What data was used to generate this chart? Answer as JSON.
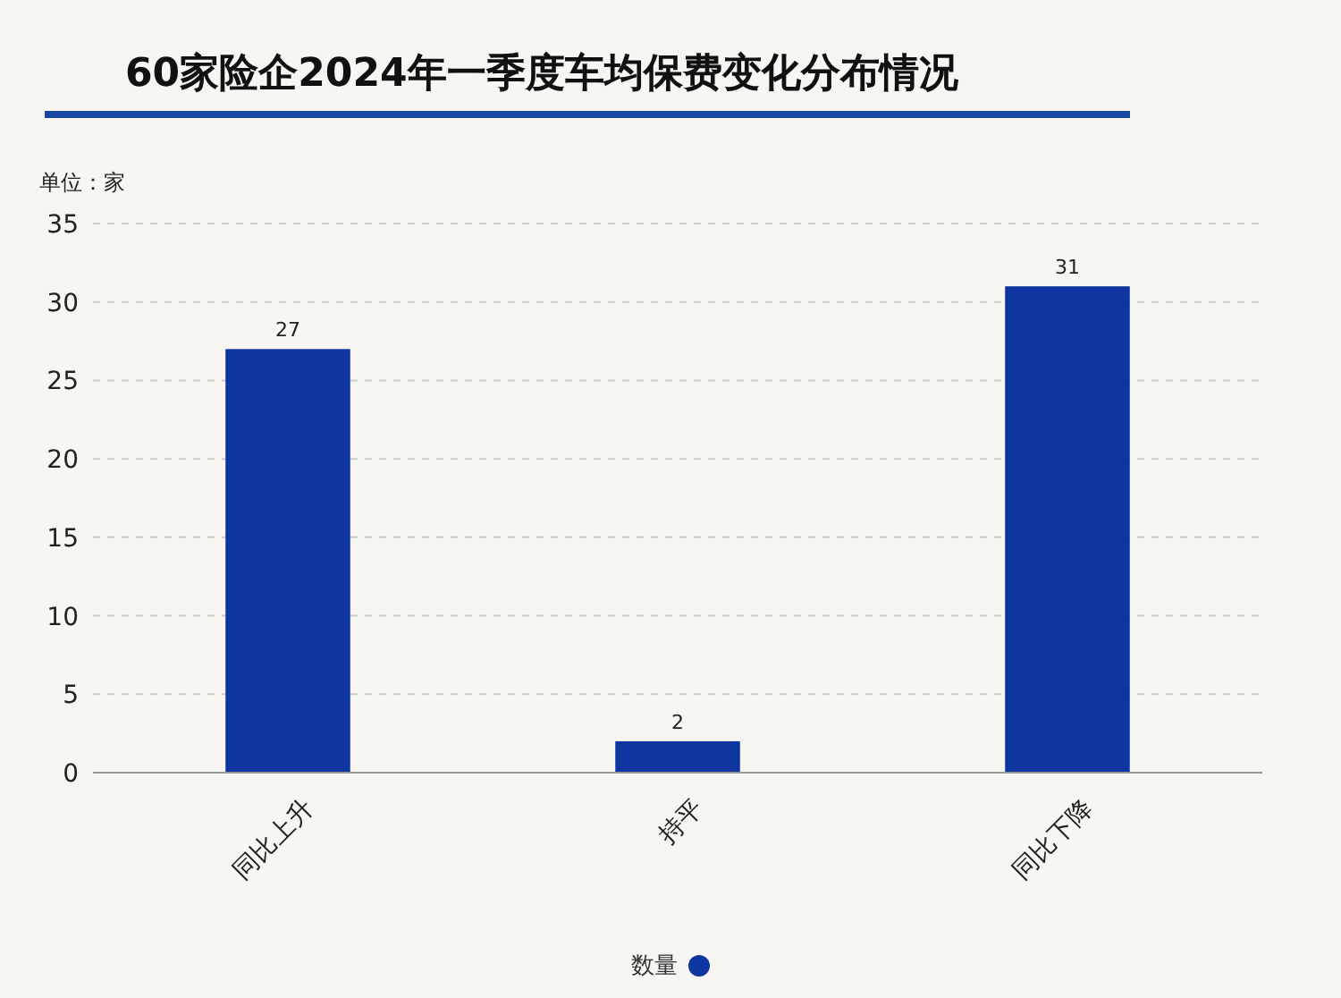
{
  "chart_data": {
    "type": "bar",
    "title": "60家险企2024年一季度车均保费变化分布情况",
    "ylabel": "单位：家",
    "categories": [
      "同比上升",
      "持平",
      "同比下降"
    ],
    "series": [
      {
        "name": "数量",
        "color": "#0f35a0",
        "values": [
          27,
          2,
          31
        ]
      }
    ],
    "ylim": [
      0,
      35
    ],
    "yticks": [
      0,
      5,
      10,
      15,
      20,
      25,
      30,
      35
    ],
    "grid": "y",
    "data_labels": true,
    "legend": "bottom"
  }
}
